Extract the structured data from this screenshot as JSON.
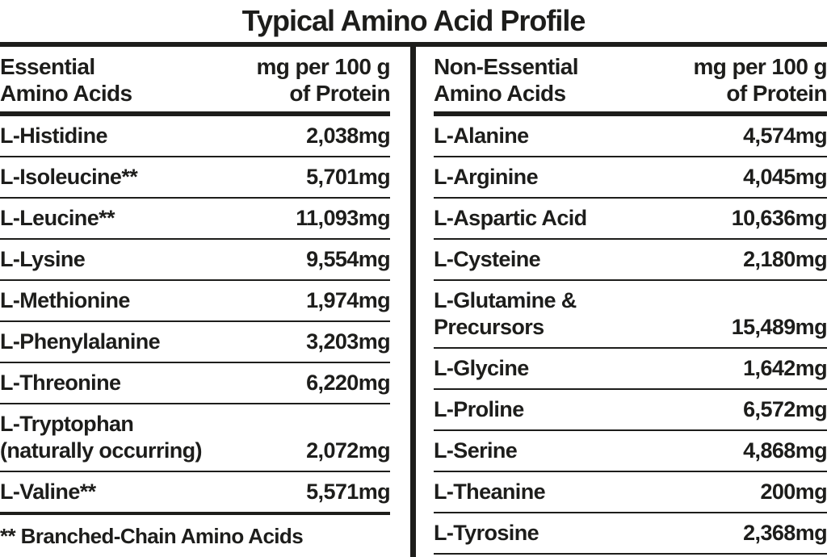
{
  "title": "Typical Amino Acid Profile",
  "colors": {
    "text": "#1d1d1b",
    "background": "#ffffff",
    "rule": "#1d1d1b"
  },
  "columns": [
    {
      "header": "Essential\nAmino Acids",
      "unit": "mg per 100 g\nof Protein",
      "rows": [
        {
          "name": "L-Histidine",
          "value": "2,038mg"
        },
        {
          "name": "L-Isoleucine**",
          "value": "5,701mg"
        },
        {
          "name": "L-Leucine**",
          "value": "11,093mg"
        },
        {
          "name": "L-Lysine",
          "value": "9,554mg"
        },
        {
          "name": "L-Methionine",
          "value": "1,974mg"
        },
        {
          "name": "L-Phenylalanine",
          "value": "3,203mg"
        },
        {
          "name": "L-Threonine",
          "value": "6,220mg"
        },
        {
          "name": "L-Tryptophan\n(naturally occurring)",
          "value": "2,072mg"
        },
        {
          "name": "L-Valine**",
          "value": "5,571mg"
        }
      ],
      "footnote": "** Branched-Chain Amino Acids"
    },
    {
      "header": "Non-Essential\nAmino Acids",
      "unit": "mg per 100 g\nof Protein",
      "rows": [
        {
          "name": "L-Alanine",
          "value": "4,574mg"
        },
        {
          "name": "L-Arginine",
          "value": "4,045mg"
        },
        {
          "name": "L-Aspartic Acid",
          "value": "10,636mg"
        },
        {
          "name": "L-Cysteine",
          "value": "2,180mg"
        },
        {
          "name": "L-Glutamine &\nPrecursors",
          "value": "15,489mg"
        },
        {
          "name": "L-Glycine",
          "value": "1,642mg"
        },
        {
          "name": "L-Proline",
          "value": "6,572mg"
        },
        {
          "name": "L-Serine",
          "value": "4,868mg"
        },
        {
          "name": "L-Theanine",
          "value": "200mg"
        },
        {
          "name": "L-Tyrosine",
          "value": "2,368mg"
        }
      ]
    }
  ]
}
